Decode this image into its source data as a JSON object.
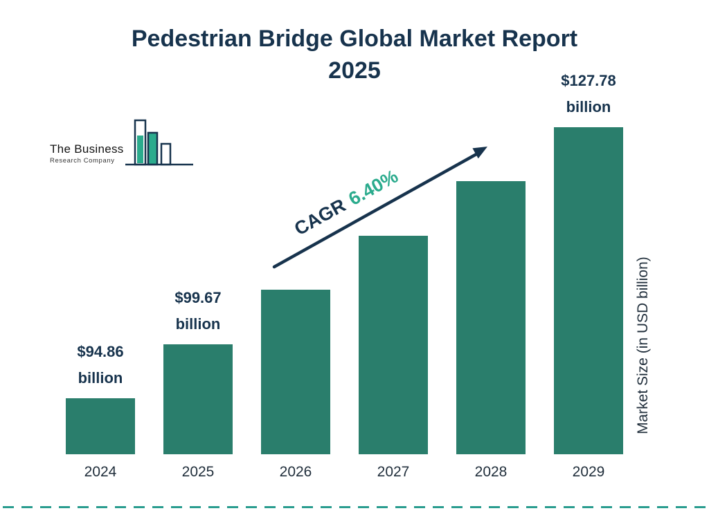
{
  "title": {
    "line1": "Pedestrian Bridge Global Market Report",
    "line2": "2025"
  },
  "logo": {
    "name": "The Business",
    "tagline": "Research Company"
  },
  "cagr": {
    "label": "CAGR",
    "value": "6.40%"
  },
  "y_axis_label": "Market Size (in USD billion)",
  "colors": {
    "bar": "#2a7e6c",
    "navy": "#17334d",
    "green_accent": "#2bab8d",
    "dashed_line": "#2a9d8f",
    "background": "#ffffff"
  },
  "chart_data": {
    "type": "bar",
    "title": "Pedestrian Bridge Global Market Report 2025",
    "categories": [
      "2024",
      "2025",
      "2026",
      "2027",
      "2028",
      "2029"
    ],
    "values": [
      94.86,
      99.67,
      106.05,
      112.84,
      120.06,
      127.78
    ],
    "unit": "USD billion",
    "xlabel": "",
    "ylabel": "Market Size (in USD billion)",
    "cagr": "6.40%",
    "legend": false,
    "grid": false,
    "value_labels": [
      [
        "$94.86",
        "billion"
      ],
      [
        "$99.67",
        "billion"
      ],
      null,
      null,
      null,
      [
        "$127.78",
        "billion"
      ]
    ]
  }
}
